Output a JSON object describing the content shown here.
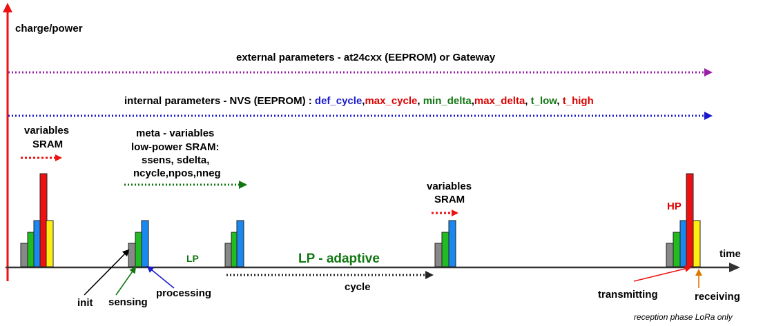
{
  "axes": {
    "y_label": "charge/power",
    "x_label": "time"
  },
  "external_params": {
    "text": "external parameters - at24cxx (EEPROM) or Gateway",
    "color": "#9a1fa8"
  },
  "internal_params": {
    "prefix": "internal parameters - NVS (EEPROM) : ",
    "parts": [
      {
        "text": "def_cycle",
        "color": "#1a1acc"
      },
      {
        "text": ",",
        "color": "#000000"
      },
      {
        "text": "max_cycle",
        "color": "#dd0000"
      },
      {
        "text": ", ",
        "color": "#000000"
      },
      {
        "text": "min_delta",
        "color": "#117711"
      },
      {
        "text": ",",
        "color": "#000000"
      },
      {
        "text": "max_delta",
        "color": "#dd0000"
      },
      {
        "text": ", ",
        "color": "#000000"
      },
      {
        "text": "t_low",
        "color": "#117711"
      },
      {
        "text": ", ",
        "color": "#000000"
      },
      {
        "text": "t_high",
        "color": "#dd0000"
      }
    ],
    "color": "#1a1acc"
  },
  "variables_sram_1": {
    "line1": "variables",
    "line2": "SRAM"
  },
  "meta_variables": {
    "line1": "meta - variables",
    "line2": "low-power SRAM:",
    "line3": "ssens, sdelta,",
    "line4": "ncycle,npos,nneg"
  },
  "variables_sram_2": {
    "line1": "variables",
    "line2": "SRAM"
  },
  "phases": {
    "lp": "LP",
    "lp_adaptive": "LP - adaptive",
    "hp": "HP",
    "cycle": "cycle"
  },
  "callouts": {
    "init": "init",
    "sensing": "sensing",
    "processing": "processing",
    "transmitting": "transmitting",
    "receiving": "receiving"
  },
  "footnote": "reception phase LoRa only",
  "colors": {
    "gray": "#888888",
    "green": "#22bb22",
    "blue": "#1a88ee",
    "red": "#ee1111",
    "yellow": "#ffee11",
    "axis": "#333333",
    "y_axis": "#ee1111",
    "lp_green": "#117711",
    "hp_red": "#dd0000",
    "orange": "#dd7700"
  }
}
